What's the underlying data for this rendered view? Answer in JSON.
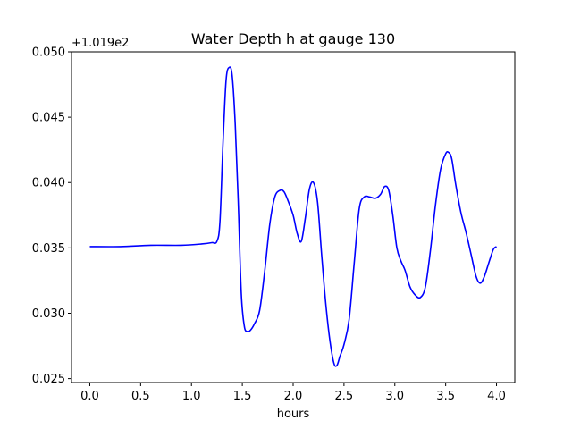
{
  "chart_data": {
    "type": "line",
    "title": "Water Depth h at gauge 130",
    "xlabel": "hours",
    "ylabel": "",
    "offset_text": "+1.019e2",
    "xlim": [
      -0.18,
      4.18
    ],
    "ylim": [
      0.0247,
      0.05
    ],
    "x_ticks": [
      0.0,
      0.5,
      1.0,
      1.5,
      2.0,
      2.5,
      3.0,
      3.5,
      4.0
    ],
    "x_tick_labels": [
      "0.0",
      "0.5",
      "1.0",
      "1.5",
      "2.0",
      "2.5",
      "3.0",
      "3.5",
      "4.0"
    ],
    "y_ticks": [
      0.025,
      0.03,
      0.035,
      0.04,
      0.045,
      0.05
    ],
    "y_tick_labels": [
      "0.025",
      "0.030",
      "0.035",
      "0.040",
      "0.045",
      "0.050"
    ],
    "grid": false,
    "series": [
      {
        "color": "#0000ff",
        "x": [
          0.0,
          0.3,
          0.6,
          0.9,
          1.1,
          1.2,
          1.25,
          1.28,
          1.31,
          1.34,
          1.37,
          1.4,
          1.43,
          1.46,
          1.49,
          1.52,
          1.55,
          1.58,
          1.62,
          1.67,
          1.72,
          1.77,
          1.82,
          1.87,
          1.91,
          1.95,
          2.0,
          2.04,
          2.08,
          2.12,
          2.16,
          2.2,
          2.24,
          2.28,
          2.32,
          2.36,
          2.4,
          2.43,
          2.46,
          2.5,
          2.55,
          2.6,
          2.65,
          2.7,
          2.75,
          2.81,
          2.86,
          2.9,
          2.94,
          2.98,
          3.02,
          3.06,
          3.1,
          3.15,
          3.2,
          3.25,
          3.3,
          3.35,
          3.4,
          3.45,
          3.5,
          3.53,
          3.56,
          3.6,
          3.65,
          3.7,
          3.75,
          3.8,
          3.84,
          3.88,
          3.93,
          3.97,
          4.0
        ],
        "y": [
          0.0351,
          0.0351,
          0.0352,
          0.0352,
          0.0353,
          0.0354,
          0.0355,
          0.037,
          0.043,
          0.0478,
          0.0488,
          0.0482,
          0.0445,
          0.0385,
          0.0315,
          0.029,
          0.0286,
          0.0287,
          0.0292,
          0.0302,
          0.0332,
          0.0368,
          0.0389,
          0.0394,
          0.0393,
          0.0386,
          0.0375,
          0.0361,
          0.0355,
          0.0373,
          0.0395,
          0.04,
          0.0385,
          0.0345,
          0.0308,
          0.028,
          0.0262,
          0.026,
          0.0267,
          0.0276,
          0.0295,
          0.0338,
          0.038,
          0.0389,
          0.0389,
          0.0388,
          0.0391,
          0.0397,
          0.0394,
          0.0375,
          0.035,
          0.034,
          0.0333,
          0.032,
          0.0314,
          0.0312,
          0.032,
          0.0348,
          0.0383,
          0.041,
          0.0422,
          0.0423,
          0.0418,
          0.0398,
          0.0377,
          0.0362,
          0.0345,
          0.0328,
          0.0323,
          0.0328,
          0.034,
          0.0349,
          0.0351
        ]
      }
    ]
  }
}
